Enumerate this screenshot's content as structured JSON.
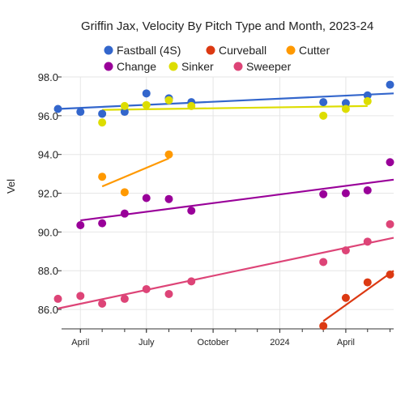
{
  "chart_data": {
    "type": "scatter",
    "title": "Griffin Jax, Velocity By Pitch Type and Month, 2023-24",
    "ylabel": "Vel",
    "xlabel": "",
    "ylim": [
      85.0,
      98.0
    ],
    "yticks": [
      "98.0",
      "96.0",
      "94.0",
      "92.0",
      "90.0",
      "88.0",
      "86.0"
    ],
    "xlim": [
      "2023-03-06",
      "2024-06-06"
    ],
    "xticks": [
      {
        "label": "April",
        "date": "2023-04-01"
      },
      {
        "label": "July",
        "date": "2023-07-01"
      },
      {
        "label": "October",
        "date": "2023-10-01"
      },
      {
        "label": "2024",
        "date": "2024-01-01"
      },
      {
        "label": "April",
        "date": "2024-04-01"
      }
    ],
    "grid": true,
    "legend_position": "top",
    "series": [
      {
        "name": "Fastball (4S)",
        "color": "#3366cc",
        "points": [
          {
            "x": "2023-03-01",
            "y": 96.35
          },
          {
            "x": "2023-04-01",
            "y": 96.2
          },
          {
            "x": "2023-05-01",
            "y": 96.1
          },
          {
            "x": "2023-06-01",
            "y": 96.2
          },
          {
            "x": "2023-07-01",
            "y": 97.15
          },
          {
            "x": "2023-08-01",
            "y": 96.9
          },
          {
            "x": "2023-09-01",
            "y": 96.7
          },
          {
            "x": "2024-03-01",
            "y": 96.7
          },
          {
            "x": "2024-04-01",
            "y": 96.65
          },
          {
            "x": "2024-05-01",
            "y": 97.05
          },
          {
            "x": "2024-06-01",
            "y": 97.6
          }
        ],
        "trend": [
          {
            "x": "2023-03-01",
            "y": 96.35
          },
          {
            "x": "2024-06-06",
            "y": 97.15
          }
        ]
      },
      {
        "name": "Curveball",
        "color": "#dc3912",
        "points": [
          {
            "x": "2024-03-01",
            "y": 85.15
          },
          {
            "x": "2024-04-01",
            "y": 86.6
          },
          {
            "x": "2024-05-01",
            "y": 87.4
          },
          {
            "x": "2024-06-01",
            "y": 87.8
          }
        ],
        "trend": [
          {
            "x": "2024-03-01",
            "y": 85.4
          },
          {
            "x": "2024-06-06",
            "y": 88.0
          }
        ]
      },
      {
        "name": "Cutter",
        "color": "#ff9900",
        "points": [
          {
            "x": "2023-05-01",
            "y": 92.85
          },
          {
            "x": "2023-06-01",
            "y": 92.05
          },
          {
            "x": "2023-08-01",
            "y": 94.0
          }
        ],
        "trend": [
          {
            "x": "2023-05-01",
            "y": 92.35
          },
          {
            "x": "2023-08-01",
            "y": 93.8
          }
        ]
      },
      {
        "name": "Change",
        "color": "#990099",
        "points": [
          {
            "x": "2023-04-01",
            "y": 90.35
          },
          {
            "x": "2023-05-01",
            "y": 90.45
          },
          {
            "x": "2023-06-01",
            "y": 90.95
          },
          {
            "x": "2023-07-01",
            "y": 91.75
          },
          {
            "x": "2023-08-01",
            "y": 91.7
          },
          {
            "x": "2023-09-01",
            "y": 91.1
          },
          {
            "x": "2024-03-01",
            "y": 91.95
          },
          {
            "x": "2024-04-01",
            "y": 92.0
          },
          {
            "x": "2024-05-01",
            "y": 92.15
          },
          {
            "x": "2024-06-01",
            "y": 93.6
          }
        ],
        "trend": [
          {
            "x": "2023-04-01",
            "y": 90.6
          },
          {
            "x": "2024-06-06",
            "y": 92.7
          }
        ]
      },
      {
        "name": "Sinker",
        "color": "#dddd00",
        "points": [
          {
            "x": "2023-05-01",
            "y": 95.65
          },
          {
            "x": "2023-06-01",
            "y": 96.5
          },
          {
            "x": "2023-07-01",
            "y": 96.55
          },
          {
            "x": "2023-08-01",
            "y": 96.8
          },
          {
            "x": "2023-09-01",
            "y": 96.5
          },
          {
            "x": "2024-03-01",
            "y": 96.0
          },
          {
            "x": "2024-04-01",
            "y": 96.35
          },
          {
            "x": "2024-05-01",
            "y": 96.75
          }
        ],
        "trend": [
          {
            "x": "2023-05-01",
            "y": 96.3
          },
          {
            "x": "2024-05-01",
            "y": 96.5
          }
        ]
      },
      {
        "name": "Sweeper",
        "color": "#dd4477",
        "points": [
          {
            "x": "2023-03-01",
            "y": 86.55
          },
          {
            "x": "2023-04-01",
            "y": 86.7
          },
          {
            "x": "2023-05-01",
            "y": 86.3
          },
          {
            "x": "2023-06-01",
            "y": 86.55
          },
          {
            "x": "2023-07-01",
            "y": 87.05
          },
          {
            "x": "2023-08-01",
            "y": 86.8
          },
          {
            "x": "2023-09-01",
            "y": 87.45
          },
          {
            "x": "2024-03-01",
            "y": 88.45
          },
          {
            "x": "2024-04-01",
            "y": 89.05
          },
          {
            "x": "2024-05-01",
            "y": 89.5
          },
          {
            "x": "2024-06-01",
            "y": 90.4
          }
        ],
        "trend": [
          {
            "x": "2023-03-01",
            "y": 86.05
          },
          {
            "x": "2024-06-06",
            "y": 89.7
          }
        ]
      }
    ]
  }
}
